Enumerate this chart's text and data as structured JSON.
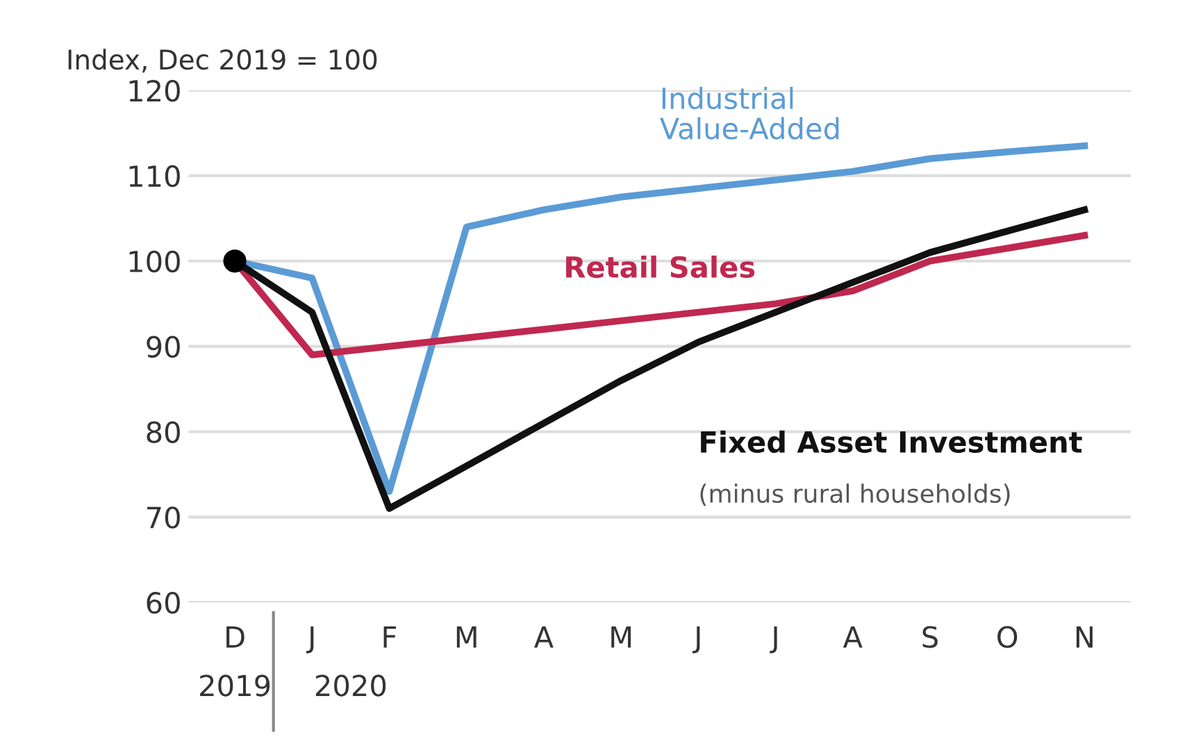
{
  "chart_data": {
    "type": "line",
    "ylabel": "Index, Dec 2019 = 100",
    "categories": [
      "D",
      "J",
      "F",
      "M",
      "A",
      "M",
      "J",
      "J",
      "A",
      "S",
      "O",
      "N"
    ],
    "series": [
      {
        "name": "Industrial\nValue-Added",
        "color": "#5b9bd5",
        "values": [
          100,
          98,
          73,
          104,
          106,
          107.5,
          108.5,
          109.5,
          110.5,
          112,
          112.8,
          113.5
        ]
      },
      {
        "name": "Retail Sales",
        "color": "#c0284f",
        "values": [
          100,
          89,
          90,
          91,
          92,
          93,
          94,
          95,
          96.5,
          100,
          101.5,
          103
        ]
      },
      {
        "name": "Fixed Asset Investment",
        "color": "#111111",
        "values": [
          100,
          94,
          71,
          76,
          81,
          86,
          90.5,
          94,
          97.5,
          101,
          103.5,
          106
        ]
      },
      {
        "type": "scatter",
        "color": "#000000",
        "x": [
          "D"
        ],
        "values": [
          100
        ],
        "marker": "circle"
      }
    ],
    "annotations": [
      "(minus rural households)",
      "2019",
      "2020"
    ],
    "ylim": [
      60,
      120
    ],
    "yticks": [
      60,
      70,
      80,
      90,
      100,
      110,
      120
    ],
    "grid": "y",
    "legend": false,
    "marker": "none",
    "line_style": "solid"
  }
}
